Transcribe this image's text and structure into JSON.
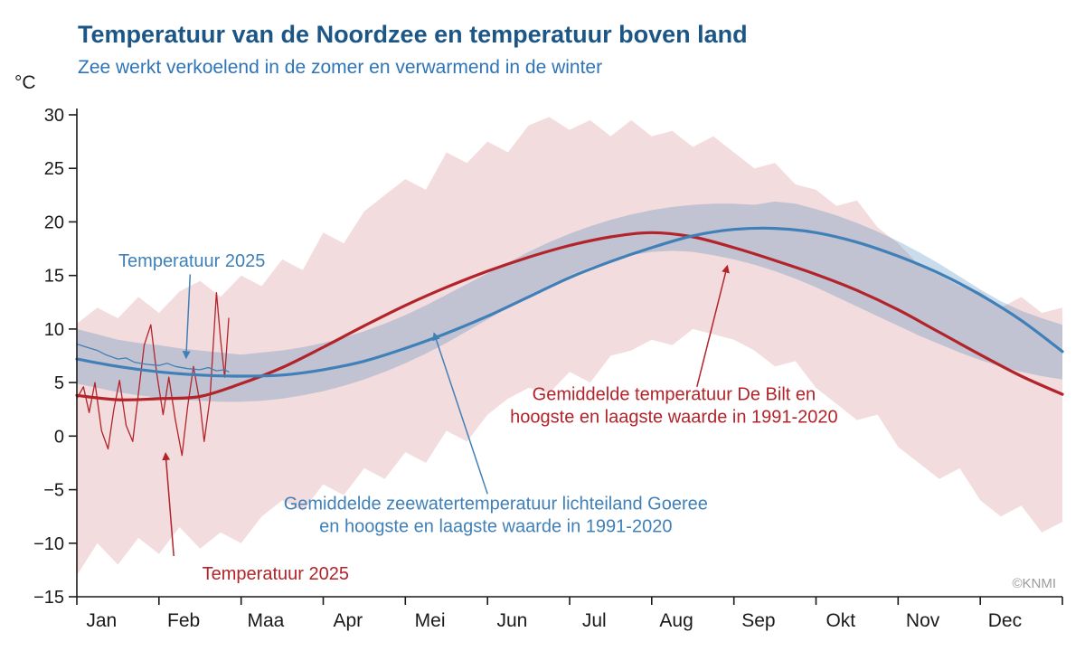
{
  "header": {
    "title": "Temperatuur van de Noordzee en temperatuur boven land",
    "subtitle": "Zee werkt verkoelend in de zomer en verwarmend in de winter",
    "unit": "°C",
    "credit": "©KNMI"
  },
  "colors": {
    "title": "#1c5687",
    "subtitle": "#2e74b8",
    "axis": "#1a1a1a",
    "sea": "#4080b8",
    "land": "#b2232a",
    "sea_fill": "rgba(64,128,184,0.28)",
    "land_fill": "rgba(178,35,42,0.16)",
    "credit": "#9b9b9b"
  },
  "chart_data": {
    "type": "line",
    "title": "Temperatuur van de Noordzee en temperatuur boven land",
    "subtitle": "Zee werkt verkoelend in de zomer en verwarmend in de winter",
    "xlabel": "",
    "ylabel": "°C",
    "xlim_months": [
      0,
      12
    ],
    "ylim": [
      -15,
      30
    ],
    "yticks": [
      30,
      25,
      20,
      15,
      10,
      5,
      0,
      -5,
      -10,
      -15
    ],
    "ytick_labels": [
      "30",
      "25",
      "20",
      "15",
      "10",
      "5",
      "0",
      "−5",
      "−10",
      "−15"
    ],
    "month_labels": [
      "Jan",
      "Feb",
      "Maa",
      "Apr",
      "Mei",
      "Jun",
      "Jul",
      "Aug",
      "Sep",
      "Okt",
      "Nov",
      "Dec"
    ],
    "grid": false,
    "series": [
      {
        "id": "land-band",
        "name": "Hoogste en laagste temperatuur De Bilt 1991-2020",
        "type": "band",
        "color": "land",
        "step": 0.25,
        "max": [
          10.5,
          12,
          11,
          13,
          11.5,
          13.5,
          14.5,
          13,
          15,
          14,
          16.5,
          15.5,
          19,
          18,
          21,
          22.5,
          24,
          23,
          26.5,
          25.5,
          27.5,
          26.5,
          29,
          29.8,
          28.6,
          29.5,
          28,
          29.5,
          28,
          28.5,
          27,
          28,
          26.5,
          25,
          25.5,
          23.5,
          23,
          21.5,
          22,
          19.5,
          18,
          16,
          15,
          14,
          13.5,
          12,
          13,
          11.5,
          12
        ],
        "min": [
          -13,
          -10,
          -12,
          -9.5,
          -11,
          -8.5,
          -10.5,
          -9,
          -10,
          -7.5,
          -6,
          -7,
          -4.5,
          -5.5,
          -3,
          -4,
          -1.5,
          -2.5,
          0.5,
          -0.5,
          2,
          3.5,
          4.5,
          4,
          6,
          5,
          7.5,
          8,
          9,
          8.5,
          10,
          9.5,
          9,
          8,
          6.5,
          7,
          4.5,
          3,
          1.5,
          2,
          -1,
          -2.5,
          -4,
          -3,
          -6,
          -7.5,
          -6.5,
          -9,
          -8
        ]
      },
      {
        "id": "sea-band",
        "name": "Hoogste en laagste zeewatertemperatuur lichteiland Goeree 1991-2020",
        "type": "band",
        "color": "sea",
        "step": 0.25,
        "max": [
          10,
          9.5,
          9,
          8.7,
          8.5,
          8.2,
          8,
          7.8,
          7.6,
          7.8,
          8,
          8.3,
          8.7,
          9.2,
          9.8,
          10.5,
          11.3,
          12.2,
          13.2,
          14.2,
          15.2,
          16.2,
          17.2,
          18.1,
          18.9,
          19.6,
          20.2,
          20.7,
          21.1,
          21.4,
          21.6,
          21.7,
          21.7,
          21.6,
          21.9,
          21.7,
          21.2,
          20.6,
          19.9,
          19.1,
          18.2,
          17.2,
          16.1,
          14.9,
          13.7,
          12.6,
          11.7,
          11,
          10.4
        ],
        "min": [
          4.9,
          4.5,
          4.1,
          3.8,
          3.6,
          3.4,
          3.3,
          3.2,
          3.2,
          3.3,
          3.5,
          3.8,
          4.2,
          4.7,
          5.3,
          6,
          6.8,
          7.7,
          8.7,
          9.8,
          10.9,
          12,
          13.1,
          14.1,
          15,
          15.8,
          16.4,
          16.9,
          17.2,
          17.3,
          17.2,
          16.9,
          16.5,
          16,
          15.4,
          14.7,
          13.9,
          13,
          12.1,
          11.2,
          10.3,
          9.4,
          8.6,
          7.8,
          7.1,
          6.5,
          6,
          5.6,
          5.3
        ]
      },
      {
        "id": "land-2025",
        "name": "Temperatuur 2025 (De Bilt)",
        "type": "line",
        "color": "land",
        "width": 1.3,
        "smooth": false,
        "x": [
          0,
          0.08,
          0.15,
          0.22,
          0.3,
          0.38,
          0.45,
          0.52,
          0.6,
          0.68,
          0.75,
          0.82,
          0.9,
          0.97,
          1.05,
          1.12,
          1.2,
          1.28,
          1.35,
          1.42,
          1.5,
          1.55,
          1.62,
          1.7,
          1.75,
          1.8,
          1.85
        ],
        "values": [
          3.5,
          4.6,
          2.2,
          5,
          0.5,
          -1.2,
          2.5,
          5.2,
          1,
          -0.5,
          4,
          8.5,
          10.4,
          6,
          2,
          5.5,
          1.5,
          -1.8,
          2.8,
          6.5,
          3,
          -0.5,
          3.5,
          13.4,
          9,
          5.5,
          11
        ]
      },
      {
        "id": "sea-2025",
        "name": "Temperatuur 2025 (zeewater lichteiland Goeree)",
        "type": "line",
        "color": "sea",
        "width": 1.3,
        "smooth": false,
        "x": [
          0,
          0.12,
          0.25,
          0.35,
          0.5,
          0.6,
          0.7,
          0.85,
          1,
          1.1,
          1.2,
          1.35,
          1.5,
          1.6,
          1.7,
          1.8,
          1.85
        ],
        "values": [
          8.6,
          8.3,
          8,
          7.6,
          7.2,
          7.3,
          6.9,
          6.7,
          6.6,
          6.8,
          6.5,
          6.3,
          6.2,
          6.4,
          6.1,
          6.2,
          6
        ]
      },
      {
        "id": "land-mean",
        "name": "Gemiddelde temperatuur De Bilt 1991-2020",
        "type": "line",
        "color": "land",
        "width": 3.2,
        "smooth": true,
        "step": 0.5,
        "values": [
          3.8,
          3.4,
          3.5,
          3.7,
          4.9,
          6.4,
          8.3,
          10.3,
          12.2,
          13.9,
          15.4,
          16.7,
          17.8,
          18.6,
          19,
          18.6,
          17.6,
          16.4,
          15.1,
          13.6,
          11.8,
          9.7,
          7.6,
          5.6,
          3.9
        ]
      },
      {
        "id": "sea-mean",
        "name": "Gemiddelde zeewatertemperatuur lichteiland Goeree 1991-2020",
        "type": "line",
        "color": "sea",
        "width": 3.2,
        "smooth": true,
        "step": 0.5,
        "values": [
          7.2,
          6.5,
          6,
          5.7,
          5.6,
          5.7,
          6.2,
          7,
          8.2,
          9.6,
          11.2,
          13,
          14.8,
          16.3,
          17.6,
          18.7,
          19.3,
          19.4,
          19,
          18.1,
          16.8,
          15.2,
          13.2,
          10.8,
          7.9
        ]
      }
    ],
    "annotations": [
      {
        "id": "sea-2025-label",
        "series": "sea",
        "lines": [
          "Temperatuur 2025"
        ],
        "tx": 1.4,
        "ty_c": 16.4,
        "arrow": [
          1.38,
          15.1,
          1.33,
          7.3
        ]
      },
      {
        "id": "land-2025-label",
        "series": "land",
        "lines": [
          "Temperatuur 2025"
        ],
        "tx": 2.42,
        "ty_c": -12.8,
        "arrow": [
          1.18,
          -11.2,
          1.08,
          -1.6
        ]
      },
      {
        "id": "land-mean-label",
        "series": "land",
        "lines": [
          "Gemiddelde temperatuur De Bilt en",
          "hoogste en laagste waarde in 1991-2020"
        ],
        "tx": 7.27,
        "ty_c": 2.9,
        "arrow": [
          7.55,
          4.6,
          7.92,
          15.9
        ]
      },
      {
        "id": "sea-mean-label",
        "series": "sea",
        "lines": [
          "Gemiddelde zeewatertemperatuur lichteiland Goeree",
          "en hoogste en laagste waarde in 1991-2020"
        ],
        "tx": 5.1,
        "ty_c": -7.3,
        "arrow": [
          5.0,
          -5.4,
          4.35,
          9.6
        ]
      }
    ]
  }
}
